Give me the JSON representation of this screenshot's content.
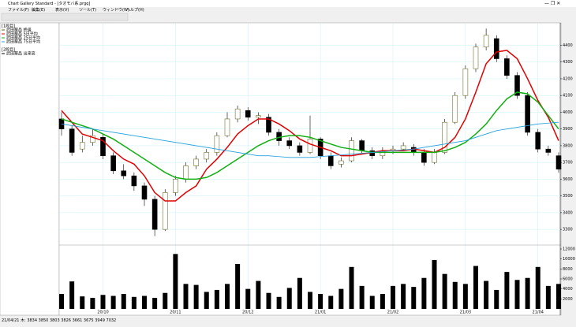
{
  "window": {
    "title": "Chart Gallery Standard - [タオモバ系.prgq]",
    "menu": [
      "ファイル(F)",
      "編集(E)",
      "表示(V)",
      "ツール(T)",
      "ウィンドウ(W)",
      "ヘルプ(H)"
    ]
  },
  "legend_panel": {
    "panel1": "[1段目]",
    "panel2": "[2段目]"
  },
  "status": "21/04/21 木: 3834 3850 3803 3826 3661 3675 3949 7032",
  "chart_data": [
    {
      "type": "candlestick",
      "name": "武田薬品 終値",
      "categories": [
        null,
        null,
        null,
        null,
        "20/10",
        null,
        null,
        null,
        null,
        null,
        null,
        "20/11",
        null,
        null,
        null,
        null,
        null,
        null,
        "20/12",
        null,
        null,
        null,
        null,
        null,
        null,
        "21/01",
        null,
        null,
        null,
        null,
        null,
        null,
        "21/02",
        null,
        null,
        null,
        null,
        null,
        null,
        "21/03",
        null,
        null,
        null,
        null,
        null,
        null,
        "21/04",
        null,
        null
      ],
      "open": [
        3960,
        3900,
        3780,
        3820,
        3850,
        3740,
        3650,
        3620,
        3560,
        3480,
        3300,
        3520,
        3600,
        3680,
        3720,
        3760,
        3860,
        3960,
        4010,
        3970,
        3970,
        3880,
        3830,
        3800,
        3760,
        3840,
        3740,
        3690,
        3710,
        3830,
        3770,
        3740,
        3770,
        3780,
        3790,
        3760,
        3700,
        3760,
        3940,
        4100,
        4260,
        4390,
        4440,
        4320,
        4220,
        4100,
        3880,
        3780,
        3740
      ],
      "high": [
        4000,
        3920,
        3860,
        3900,
        3870,
        3760,
        3690,
        3640,
        3580,
        3500,
        3540,
        3620,
        3700,
        3740,
        3780,
        3880,
        4000,
        4040,
        4030,
        4000,
        3990,
        3900,
        3850,
        3820,
        3980,
        3850,
        3760,
        3730,
        3850,
        3840,
        3790,
        3790,
        3800,
        3820,
        3810,
        3780,
        3780,
        3960,
        4120,
        4280,
        4410,
        4500,
        4460,
        4340,
        4240,
        4120,
        3900,
        3800,
        3760
      ],
      "low": [
        3860,
        3740,
        3760,
        3800,
        3720,
        3630,
        3600,
        3530,
        3440,
        3260,
        3290,
        3500,
        3580,
        3660,
        3700,
        3740,
        3850,
        3940,
        3950,
        3930,
        3860,
        3800,
        3780,
        3740,
        3750,
        3720,
        3660,
        3670,
        3700,
        3750,
        3720,
        3720,
        3750,
        3770,
        3740,
        3680,
        3690,
        3750,
        3930,
        4080,
        4240,
        4370,
        4300,
        4200,
        4080,
        3860,
        3760,
        3740,
        3640
      ],
      "close": [
        3900,
        3760,
        3820,
        3860,
        3740,
        3650,
        3620,
        3560,
        3480,
        3300,
        3520,
        3600,
        3680,
        3720,
        3760,
        3860,
        3960,
        4020,
        3970,
        3980,
        3880,
        3830,
        3800,
        3760,
        3840,
        3740,
        3680,
        3710,
        3830,
        3770,
        3740,
        3770,
        3780,
        3800,
        3760,
        3700,
        3760,
        3940,
        4100,
        4260,
        4390,
        4460,
        4320,
        4220,
        4100,
        3880,
        3780,
        3760,
        3660
      ],
      "series": [
        {
          "name": "武田薬品 5日平均",
          "color": "#e00000",
          "values": [
            4010,
            3940,
            3870,
            3850,
            3830,
            3770,
            3720,
            3690,
            3620,
            3520,
            3470,
            3470,
            3520,
            3560,
            3660,
            3720,
            3790,
            3870,
            3920,
            3960,
            3960,
            3930,
            3890,
            3840,
            3810,
            3790,
            3770,
            3740,
            3740,
            3750,
            3760,
            3770,
            3770,
            3770,
            3780,
            3770,
            3760,
            3790,
            3850,
            3960,
            4120,
            4290,
            4360,
            4370,
            4320,
            4200,
            4070,
            3970,
            3830
          ]
        },
        {
          "name": "武田薬品 25日平均",
          "color": "#10b010",
          "values": [
            3960,
            3940,
            3920,
            3900,
            3870,
            3840,
            3800,
            3760,
            3720,
            3680,
            3640,
            3610,
            3600,
            3600,
            3610,
            3640,
            3680,
            3720,
            3760,
            3800,
            3830,
            3850,
            3860,
            3860,
            3850,
            3830,
            3810,
            3790,
            3780,
            3770,
            3760,
            3760,
            3760,
            3760,
            3760,
            3760,
            3760,
            3770,
            3790,
            3820,
            3870,
            3930,
            4010,
            4080,
            4120,
            4110,
            4060,
            3980,
            3900
          ]
        },
        {
          "name": "武田薬品 75日平均",
          "color": "#20a0e0",
          "values": [
            3930,
            3920,
            3910,
            3900,
            3890,
            3880,
            3870,
            3860,
            3850,
            3840,
            3830,
            3820,
            3810,
            3800,
            3790,
            3780,
            3770,
            3760,
            3750,
            3740,
            3740,
            3735,
            3730,
            3730,
            3730,
            3735,
            3740,
            3745,
            3750,
            3755,
            3760,
            3765,
            3770,
            3775,
            3780,
            3790,
            3800,
            3810,
            3820,
            3830,
            3850,
            3870,
            3890,
            3900,
            3910,
            3920,
            3930,
            3935,
            3940
          ]
        }
      ],
      "ylim": [
        3230,
        4520
      ],
      "yticks": [
        3300,
        3400,
        3500,
        3600,
        3700,
        3800,
        3900,
        4000,
        4100,
        4200,
        4300,
        4400
      ],
      "grid": true
    },
    {
      "type": "bar",
      "name": "武田薬品 出来高",
      "color": "#000000",
      "values": [
        3000,
        5500,
        2500,
        2200,
        2800,
        2600,
        3000,
        2400,
        2600,
        2200,
        3200,
        11000,
        5000,
        4800,
        3400,
        3800,
        5000,
        9000,
        4000,
        5600,
        3200,
        2400,
        4200,
        6200,
        3400,
        3000,
        2600,
        4000,
        8400,
        4600,
        2600,
        3000,
        4600,
        5000,
        4400,
        6200,
        9800,
        7000,
        5400,
        5000,
        8600,
        5600,
        3800,
        7400,
        5800,
        6200,
        8400,
        4600,
        5000
      ],
      "ylim": [
        0,
        12000
      ],
      "yticks": [
        2000,
        4000,
        6000,
        8000,
        10000,
        12000
      ]
    }
  ]
}
